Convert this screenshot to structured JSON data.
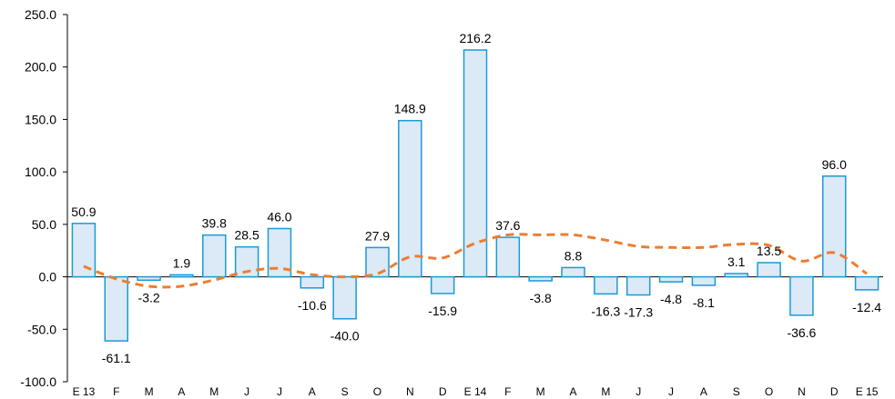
{
  "chart_data": {
    "type": "bar",
    "categories": [
      "E 13",
      "F",
      "M",
      "A",
      "M",
      "J",
      "J",
      "A",
      "S",
      "O",
      "N",
      "D",
      "E 14",
      "F",
      "M",
      "A",
      "M",
      "J",
      "J",
      "A",
      "S",
      "O",
      "N",
      "D",
      "E 15"
    ],
    "series": [
      {
        "values": [
          50.9,
          -61.1,
          -3.2,
          1.9,
          39.8,
          28.5,
          46.0,
          -10.6,
          -40.0,
          27.9,
          148.9,
          -15.9,
          216.2,
          37.6,
          -3.8,
          8.8,
          -16.3,
          -17.3,
          -4.8,
          -8.1,
          3.1,
          13.5,
          -36.6,
          96.0,
          -12.4
        ],
        "labels": [
          "50.9",
          "-61.1",
          "-3.2",
          "1.9",
          "39.8",
          "28.5",
          "46.0",
          "-10.6",
          "-40.0",
          "27.9",
          "148.9",
          "-15.9",
          "216.2",
          "37.6",
          "-3.8",
          "8.8",
          "-16.3",
          "-17.3",
          "-4.8",
          "-8.1",
          "3.1",
          "13.5",
          "-36.6",
          "96.0",
          "-12.4"
        ]
      },
      {
        "type": "line",
        "style": "dashed",
        "values": [
          10,
          -2,
          -9,
          -9,
          -3,
          5,
          8,
          2,
          0,
          3,
          19,
          18,
          32,
          40,
          40,
          40,
          35,
          29,
          28,
          28,
          31,
          30,
          15,
          23,
          3
        ]
      }
    ],
    "y_ticks": [
      "250.0",
      "200.0",
      "150.0",
      "100.0",
      "50.0",
      "0.0",
      "-50.0",
      "-100.0"
    ],
    "ylim": [
      -100,
      250
    ],
    "title": "",
    "xlabel": "",
    "ylabel": "",
    "grid": false,
    "colors": {
      "bar_fill": "#dce9f6",
      "bar_stroke": "#1a9ad7",
      "trend_line": "#ed7d31",
      "axis": "#000000"
    }
  }
}
